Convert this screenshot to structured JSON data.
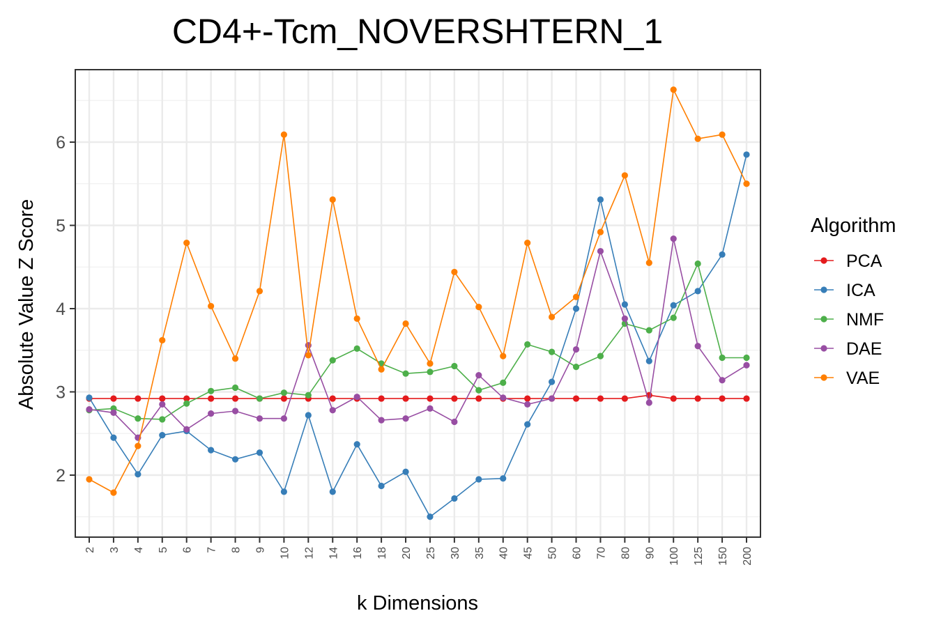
{
  "chart_data": {
    "type": "line",
    "title": "CD4+-Tcm_NOVERSHTERN_1",
    "xlabel": "k Dimensions",
    "ylabel": "Absolute Value Z Score",
    "categories": [
      "2",
      "3",
      "4",
      "5",
      "6",
      "7",
      "8",
      "9",
      "10",
      "12",
      "14",
      "16",
      "18",
      "20",
      "25",
      "30",
      "35",
      "40",
      "45",
      "50",
      "60",
      "70",
      "80",
      "90",
      "100",
      "125",
      "150",
      "200"
    ],
    "y_ticks": [
      "2",
      "3",
      "4",
      "5",
      "6"
    ],
    "ylim": [
      1.35,
      6.85
    ],
    "grid": true,
    "legend": {
      "title": "Algorithm",
      "position": "right"
    },
    "series": [
      {
        "name": "PCA",
        "color": "#E41A1C",
        "values": [
          2.92,
          2.92,
          2.92,
          2.92,
          2.92,
          2.92,
          2.92,
          2.92,
          2.92,
          2.92,
          2.92,
          2.92,
          2.92,
          2.92,
          2.92,
          2.92,
          2.92,
          2.92,
          2.92,
          2.92,
          2.92,
          2.92,
          2.92,
          2.96,
          2.92,
          2.92,
          2.92,
          2.92
        ]
      },
      {
        "name": "ICA",
        "color": "#377EB8",
        "values": [
          2.93,
          2.45,
          2.01,
          2.48,
          2.53,
          2.3,
          2.19,
          2.27,
          1.8,
          2.72,
          1.8,
          2.37,
          1.87,
          2.04,
          1.5,
          1.72,
          1.95,
          1.96,
          2.61,
          3.12,
          4.0,
          5.31,
          4.05,
          3.37,
          4.04,
          4.21,
          4.65,
          5.85
        ]
      },
      {
        "name": "NMF",
        "color": "#4DAF4A",
        "values": [
          2.78,
          2.8,
          2.68,
          2.67,
          2.86,
          3.01,
          3.05,
          2.92,
          2.99,
          2.96,
          3.38,
          3.52,
          3.34,
          3.22,
          3.24,
          3.31,
          3.02,
          3.11,
          3.57,
          3.48,
          3.3,
          3.43,
          3.82,
          3.74,
          3.89,
          4.54,
          3.41,
          3.41
        ]
      },
      {
        "name": "DAE",
        "color": "#984EA3",
        "values": [
          2.79,
          2.75,
          2.45,
          2.85,
          2.55,
          2.74,
          2.77,
          2.68,
          2.68,
          3.56,
          2.78,
          2.94,
          2.66,
          2.68,
          2.8,
          2.64,
          3.2,
          2.93,
          2.85,
          2.92,
          3.51,
          4.69,
          3.88,
          2.87,
          4.84,
          3.55,
          3.14,
          3.32
        ]
      },
      {
        "name": "VAE",
        "color": "#FF7F00",
        "values": [
          1.95,
          1.79,
          2.35,
          3.62,
          4.79,
          4.03,
          3.4,
          4.21,
          6.09,
          3.44,
          5.31,
          3.88,
          3.27,
          3.82,
          3.34,
          4.44,
          4.02,
          3.43,
          4.79,
          3.9,
          4.14,
          4.92,
          5.6,
          4.55,
          6.63,
          6.04,
          6.09,
          5.5
        ]
      }
    ]
  }
}
